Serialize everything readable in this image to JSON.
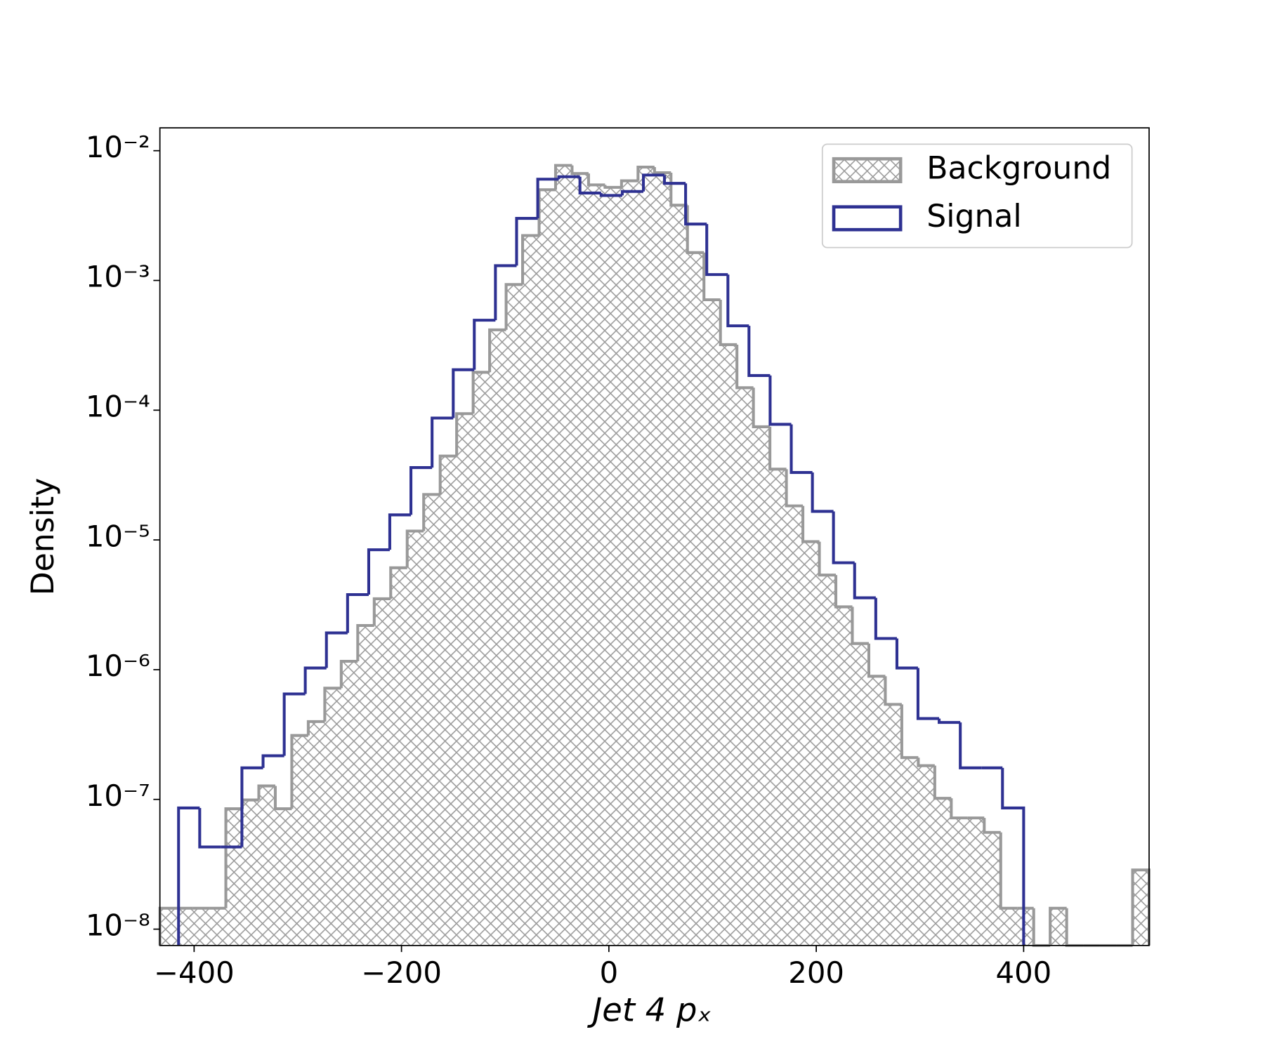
{
  "chart_data": {
    "type": "histogram",
    "xlabel": "Jet 4 pₓ",
    "ylabel": "Density",
    "log_y": true,
    "legend": "upper right",
    "xlim": [
      -433,
      521
    ],
    "ylim": [
      7.48e-09,
      0.015
    ],
    "xticks": [
      {
        "value": -400,
        "label": "−400"
      },
      {
        "value": -200,
        "label": "−200"
      },
      0,
      200,
      400
    ],
    "yticks": [
      {
        "value": 1e-08,
        "label": "10⁻⁸"
      },
      {
        "value": 1e-07,
        "label": "10⁻⁷"
      },
      {
        "value": 1e-06,
        "label": "10⁻⁶"
      },
      {
        "value": 1e-05,
        "label": "10⁻⁵"
      },
      {
        "value": 0.0001,
        "label": "10⁻⁴"
      },
      {
        "value": 0.001,
        "label": "10⁻³"
      },
      {
        "value": 0.01,
        "label": "10⁻²"
      }
    ],
    "series": [
      {
        "name": "Background",
        "color": "#999999",
        "hatch": true,
        "bins": [
          -433,
          -417.1,
          -401.2,
          -385.3,
          -369.4,
          -353.5,
          -337.6,
          -321.7,
          -305.8,
          -289.9,
          -274,
          -258.1,
          -242.2,
          -226.3,
          -210.4,
          -194.5,
          -178.6,
          -162.7,
          -146.8,
          -130.9,
          -115,
          -99.1,
          -83.2,
          -67.3,
          -51.4,
          -35.5,
          -19.6,
          -3.7,
          12.2,
          28.1,
          44,
          59.9,
          75.8,
          91.7,
          107.6,
          123.5,
          139.4,
          155.3,
          171.2,
          187.1,
          203,
          218.9,
          234.8,
          250.7,
          266.6,
          282.5,
          298.4,
          314.3,
          330.2,
          346.1,
          362,
          377.9,
          393.8,
          409.7,
          425.6,
          441.5,
          457.4,
          473.3,
          489.2,
          505.1,
          521
        ],
        "values": [
          1.45e-08,
          1.45e-08,
          1.45e-08,
          1.45e-08,
          8.47e-08,
          9.9e-08,
          1.27e-07,
          8.47e-08,
          3.11e-07,
          3.98e-07,
          7.2e-07,
          1.16e-06,
          2.19e-06,
          3.52e-06,
          6.1e-06,
          1.17e-05,
          2.24e-05,
          4.43e-05,
          9.4e-05,
          0.000196,
          0.000416,
          0.00093,
          0.00222,
          0.005,
          0.0077,
          0.00667,
          0.00545,
          0.00522,
          0.00586,
          0.00748,
          0.00677,
          0.0038,
          0.00164,
          0.00071,
          0.00032,
          0.000149,
          7.45e-05,
          3.51e-05,
          1.83e-05,
          9.7e-06,
          5.36e-06,
          3.05e-06,
          1.59e-06,
          8.9e-07,
          5.4e-07,
          2.1e-07,
          1.82e-07,
          1.02e-07,
          7.2e-08,
          7.2e-08,
          5.57e-08,
          1.45e-08,
          1.45e-08,
          0,
          1.45e-08,
          0,
          0,
          0,
          0,
          2.86e-08
        ]
      },
      {
        "name": "Signal",
        "color": "#2e3192",
        "hatch": false,
        "bins": [
          -415,
          -394.6,
          -374.3,
          -353.9,
          -333.5,
          -313.1,
          -292.8,
          -272.4,
          -252,
          -231.6,
          -211.3,
          -190.9,
          -170.5,
          -150.1,
          -129.8,
          -109.4,
          -89,
          -68.6,
          -48.3,
          -27.9,
          -7.5,
          12.9,
          33.3,
          53.6,
          74,
          94.4,
          114.8,
          135.1,
          155.5,
          175.9,
          196.3,
          216.6,
          237,
          257.4,
          277.8,
          298.1,
          318.5,
          338.9,
          359.3,
          379.6,
          400
        ],
        "values": [
          8.59e-08,
          4.3e-08,
          4.3e-08,
          1.75e-07,
          2.17e-07,
          6.5e-07,
          1.03e-06,
          1.92e-06,
          3.79e-06,
          8.4e-06,
          1.56e-05,
          3.61e-05,
          8.7e-05,
          0.000205,
          0.000494,
          0.0013,
          0.00301,
          0.00603,
          0.0063,
          0.00472,
          0.00452,
          0.00485,
          0.00649,
          0.0056,
          0.00272,
          0.00111,
          0.000447,
          0.000185,
          7.78e-05,
          3.31e-05,
          1.66e-05,
          6.67e-06,
          3.58e-06,
          1.74e-06,
          1.03e-06,
          4.2e-07,
          3.92e-07,
          1.75e-07,
          1.75e-07,
          8.59e-08
        ]
      }
    ]
  }
}
